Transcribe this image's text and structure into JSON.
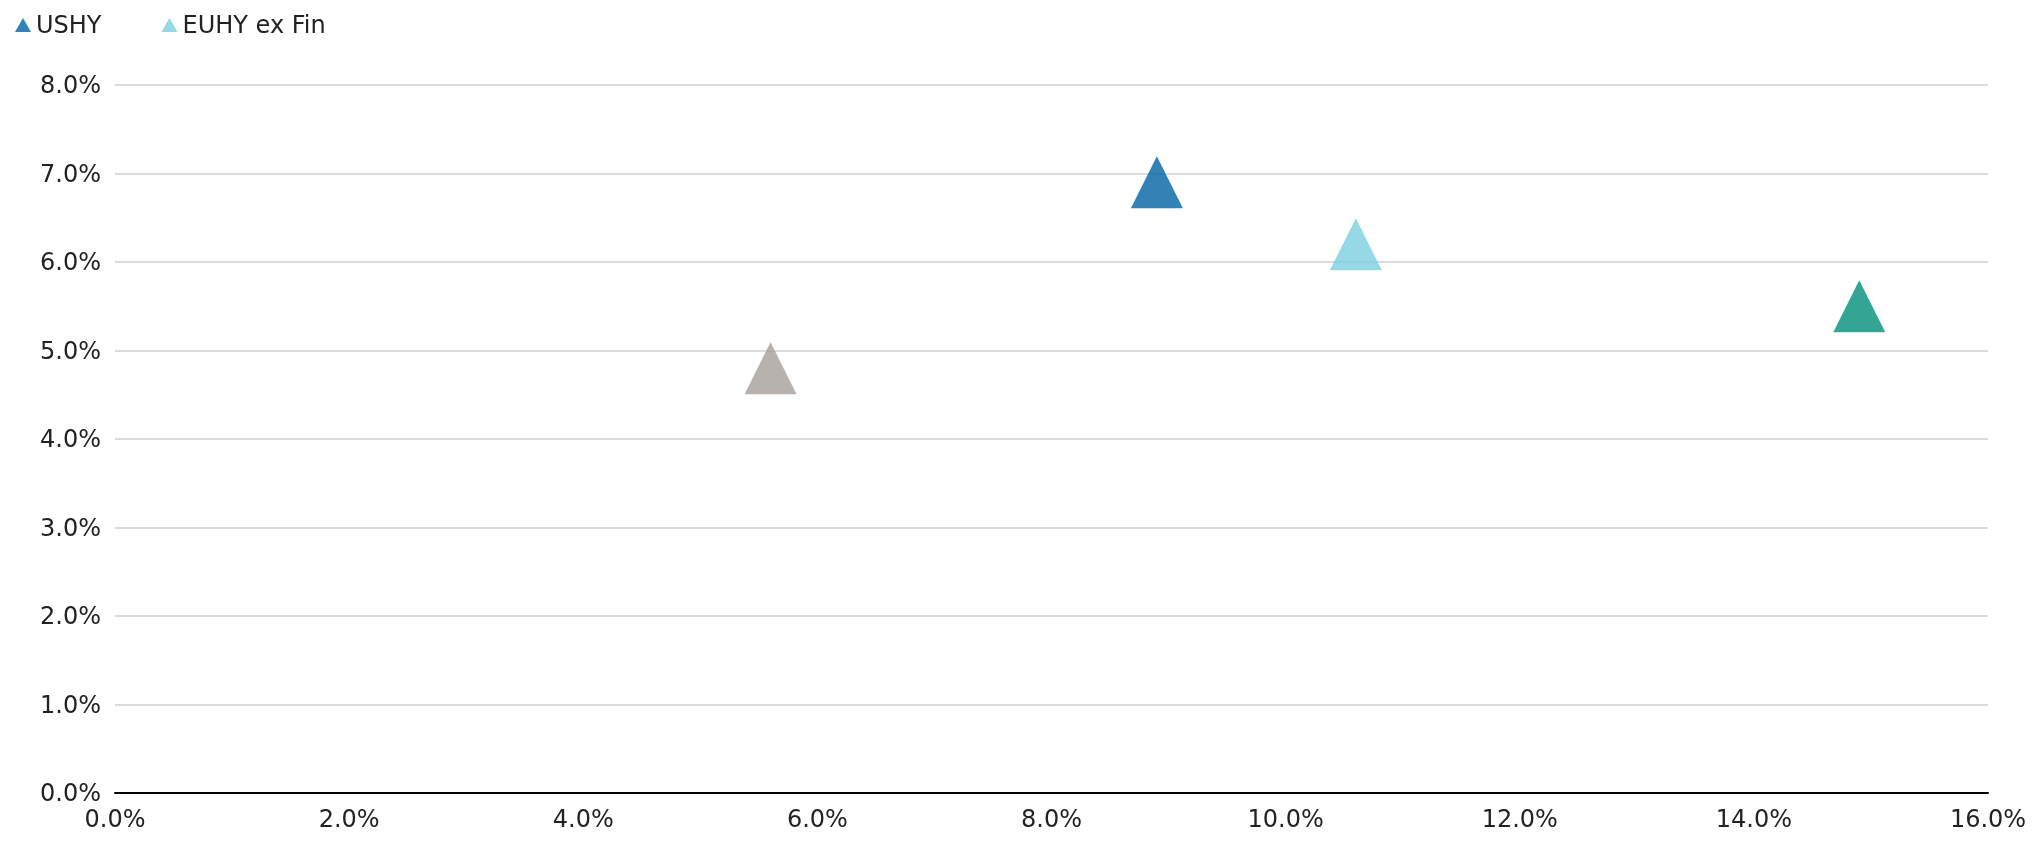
{
  "chart_data": {
    "type": "scatter",
    "marker": "triangle",
    "grid": "y",
    "legend": "top left",
    "xlim": [
      0,
      16
    ],
    "ylim": [
      0,
      8
    ],
    "xticks": [
      {
        "value": 0,
        "label": "0.0%"
      },
      {
        "value": 2,
        "label": "2.0%"
      },
      {
        "value": 4,
        "label": "4.0%"
      },
      {
        "value": 6,
        "label": "6.0%"
      },
      {
        "value": 8,
        "label": "8.0%"
      },
      {
        "value": 10,
        "label": "10.0%"
      },
      {
        "value": 12,
        "label": "12.0%"
      },
      {
        "value": 14,
        "label": "14.0%"
      },
      {
        "value": 16,
        "label": "16.0%"
      }
    ],
    "yticks": [
      {
        "value": 0,
        "label": "0.0%"
      },
      {
        "value": 1,
        "label": "1.0%"
      },
      {
        "value": 2,
        "label": "2.0%"
      },
      {
        "value": 3,
        "label": "3.0%"
      },
      {
        "value": 4,
        "label": "4.0%"
      },
      {
        "value": 5,
        "label": "5.0%"
      },
      {
        "value": 6,
        "label": "6.0%"
      },
      {
        "value": 7,
        "label": "7.0%"
      },
      {
        "value": 8,
        "label": "8.0%"
      }
    ],
    "series": [
      {
        "name": "USHY",
        "color": "#0063a3",
        "x": [
          8.9
        ],
        "values": [
          6.9
        ]
      },
      {
        "name": "EUHY ex Fin",
        "color": "#7ccfe0",
        "x": [
          10.6
        ],
        "values": [
          6.2
        ]
      },
      {
        "color": "#a59f9a",
        "x": [
          5.6
        ],
        "values": [
          4.8
        ]
      },
      {
        "color": "#009078",
        "x": [
          14.9
        ],
        "values": [
          5.5
        ]
      }
    ]
  }
}
